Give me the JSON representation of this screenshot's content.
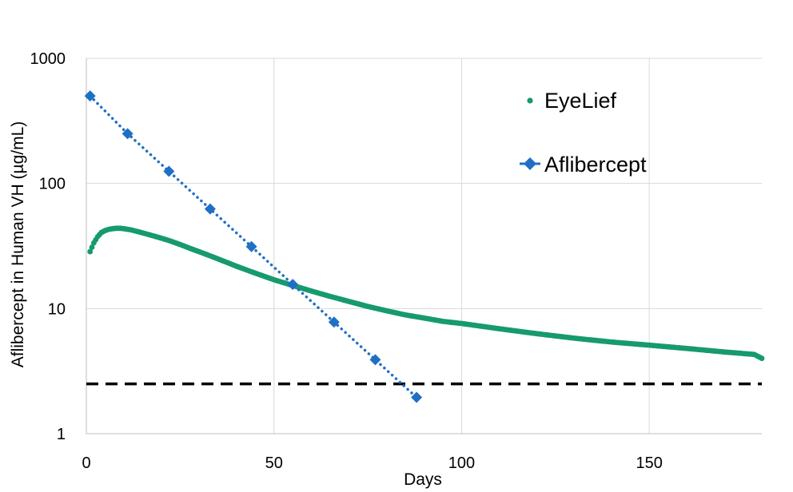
{
  "chart_data": {
    "type": "scatter",
    "x_scale": "linear",
    "y_scale": "log",
    "xlim": [
      0,
      180
    ],
    "ylim": [
      1,
      1000
    ],
    "x_ticks": [
      "0",
      "50",
      "100",
      "150"
    ],
    "y_ticks": [
      "1",
      "10",
      "100",
      "1000"
    ],
    "xlabel": "Days",
    "ylabel": "Aflibercept  in Human VH (µg/mL)",
    "grid": true,
    "legend_position": "top-right",
    "series": [
      {
        "name": "EyeLief",
        "color": "#169A6E",
        "marker": "circle",
        "style": "dense-markers",
        "x": [
          1,
          2,
          3,
          4,
          5,
          6,
          7,
          8,
          9,
          10,
          12,
          14,
          16,
          18,
          20,
          22,
          25,
          28,
          31,
          35,
          40,
          45,
          50,
          55,
          60,
          65,
          70,
          75,
          80,
          85,
          90,
          95,
          100,
          110,
          120,
          130,
          140,
          150,
          160,
          170,
          178,
          180
        ],
        "values": [
          28.5,
          33.5,
          37.5,
          40.5,
          42,
          43,
          43.5,
          43.8,
          43.8,
          43.5,
          42.5,
          41,
          39.5,
          38,
          36.5,
          35,
          32.5,
          30,
          27.8,
          25,
          21.8,
          19.2,
          17,
          15.3,
          13.8,
          12.5,
          11.4,
          10.4,
          9.6,
          8.9,
          8.4,
          7.9,
          7.6,
          6.9,
          6.3,
          5.8,
          5.4,
          5.1,
          4.8,
          4.5,
          4.3,
          4.0
        ]
      },
      {
        "name": "Aflibercept",
        "color": "#1F6FC5",
        "marker": "diamond",
        "line_style": "dotted",
        "x": [
          1,
          11,
          22,
          33,
          44,
          55,
          66,
          77,
          88
        ],
        "values": [
          500,
          250,
          125,
          62.5,
          31.3,
          15.6,
          7.8,
          3.9,
          1.95
        ]
      }
    ],
    "reference_line": {
      "y": 2.5,
      "x_range": [
        0,
        180
      ],
      "style": "dashed",
      "color": "#000000"
    }
  }
}
